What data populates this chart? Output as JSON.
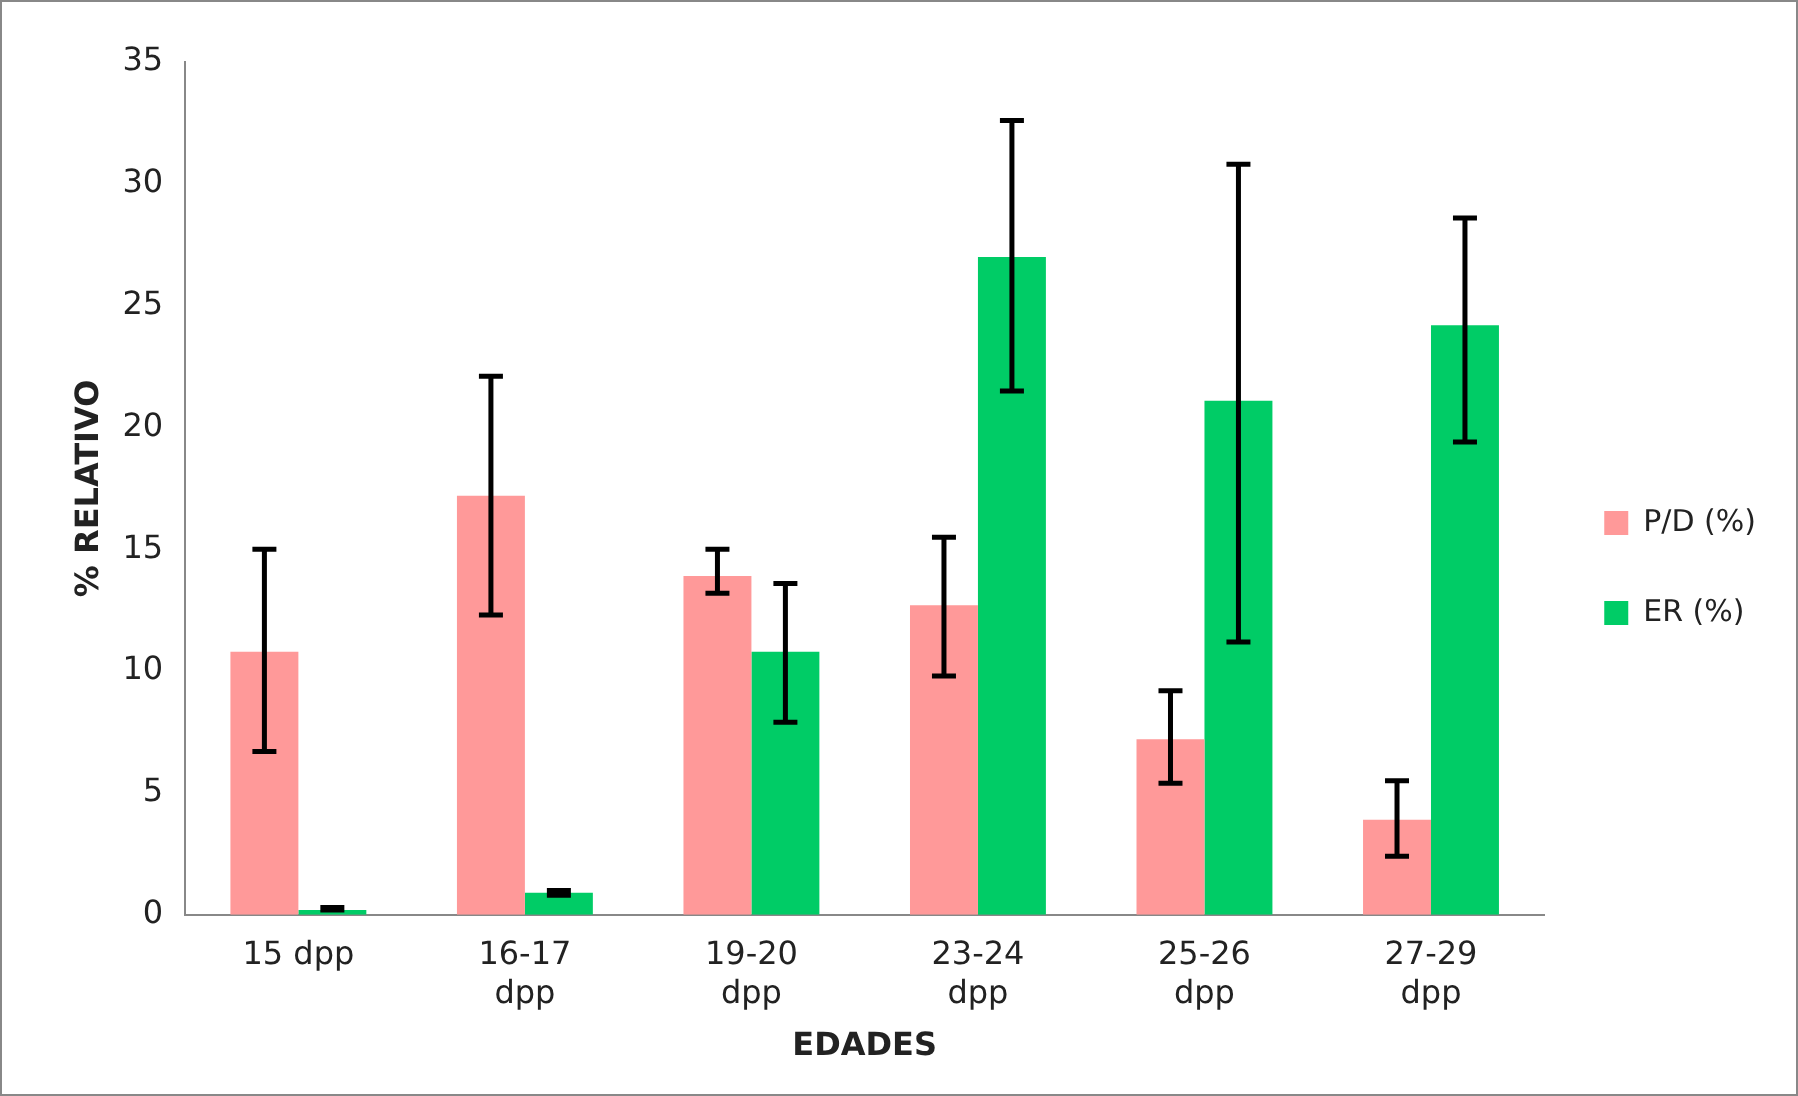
{
  "chart_data": {
    "type": "bar",
    "xlabel": "EDADES",
    "ylabel": "% RELATIVO",
    "categories": [
      "15 dpp",
      "16-17 dpp",
      "19-20 dpp",
      "23-24 dpp",
      "25-26 dpp",
      "27-29 dpp"
    ],
    "series": [
      {
        "name": "P/D (%)",
        "color": "#ff9999",
        "values": [
          10.8,
          17.2,
          13.9,
          12.7,
          7.2,
          3.9
        ],
        "errors": [
          [
            6.7,
            15.0
          ],
          [
            12.3,
            22.1
          ],
          [
            13.2,
            15.0
          ],
          [
            9.8,
            15.5
          ],
          [
            5.4,
            9.2
          ],
          [
            2.4,
            5.5
          ]
        ]
      },
      {
        "name": "ER (%)",
        "color": "#00cc66",
        "values": [
          0.2,
          0.9,
          10.8,
          27.0,
          21.1,
          24.2
        ],
        "errors": [
          [
            0.2,
            0.3
          ],
          [
            0.8,
            1.0
          ],
          [
            7.9,
            13.6
          ],
          [
            21.5,
            32.6
          ],
          [
            11.2,
            30.8
          ],
          [
            19.4,
            28.6
          ]
        ]
      }
    ],
    "ylim": [
      0,
      35
    ],
    "yticks": [
      0,
      5,
      10,
      15,
      20,
      25,
      30,
      35
    ],
    "grid": false,
    "legend": "right"
  }
}
